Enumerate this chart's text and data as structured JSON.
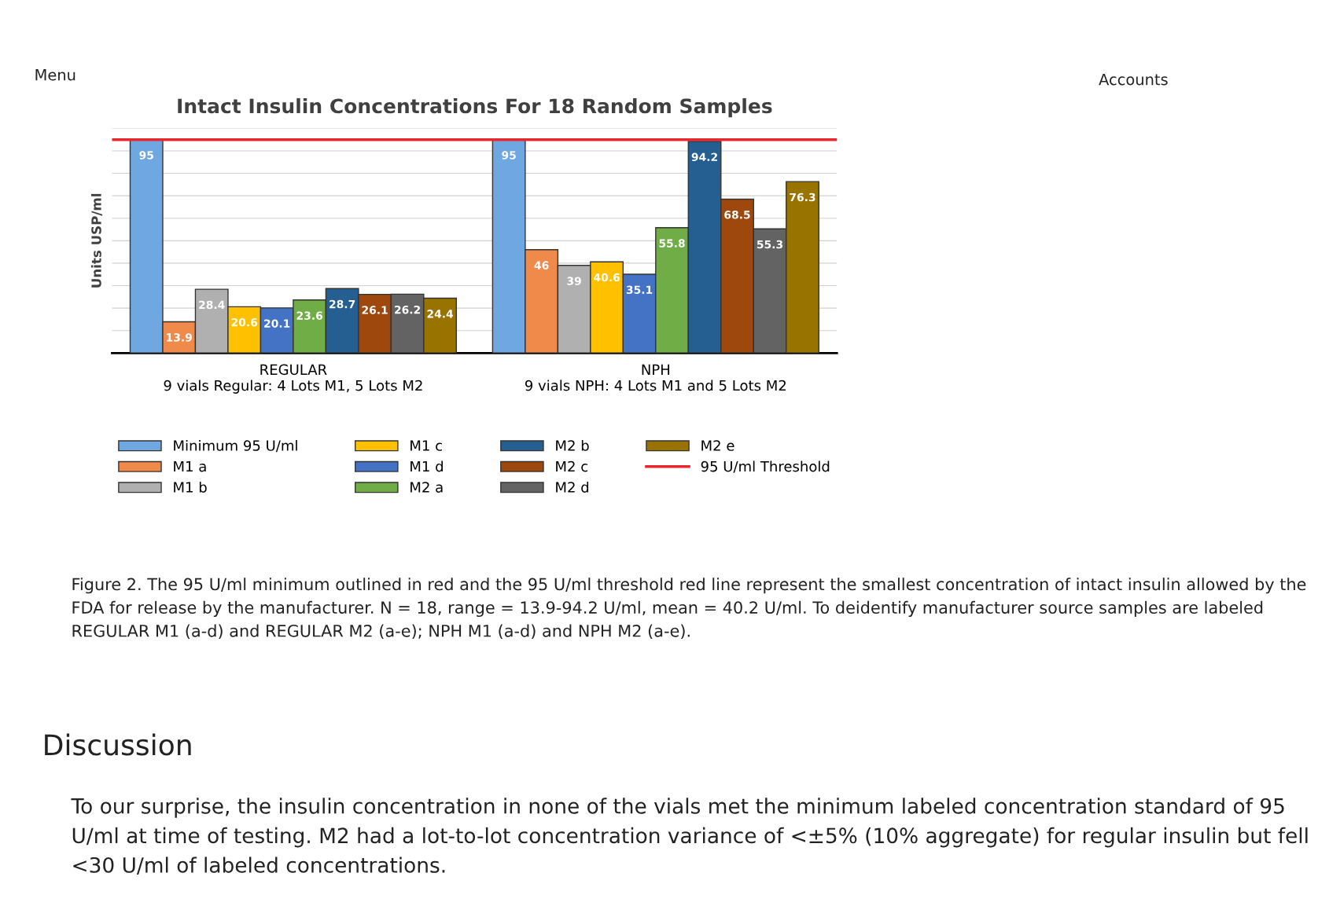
{
  "chart_data": {
    "type": "bar",
    "title": "Intact Insulin Concentrations For 18 Random Samples",
    "ylabel": "Units USP/ml",
    "categories": [
      "REGULAR\n9 vials Regular: 4 Lots M1, 5 Lots M2",
      "NPH\n9 vials NPH: 4 Lots M1 and 5 Lots M2"
    ],
    "series": [
      {
        "name": "Minimum 95 U/ml",
        "color": "#6fa8e0",
        "values": [
          95,
          95
        ]
      },
      {
        "name": "M1 a",
        "color": "#f08a4b",
        "values": [
          13.9,
          46
        ]
      },
      {
        "name": "M1 b",
        "color": "#b0b0b0",
        "values": [
          28.4,
          39
        ]
      },
      {
        "name": "M1 c",
        "color": "#ffc000",
        "values": [
          20.6,
          40.6
        ]
      },
      {
        "name": "M1 d",
        "color": "#4472c4",
        "values": [
          20.1,
          35.1
        ]
      },
      {
        "name": "M2 a",
        "color": "#70ad47",
        "values": [
          23.6,
          55.8
        ]
      },
      {
        "name": "M2 b",
        "color": "#255e91",
        "values": [
          28.7,
          94.2
        ]
      },
      {
        "name": "M2 c",
        "color": "#9e480e",
        "values": [
          26.1,
          68.5
        ]
      },
      {
        "name": "M2 d",
        "color": "#636363",
        "values": [
          26.2,
          55.3
        ]
      },
      {
        "name": "M2 e",
        "color": "#997300",
        "values": [
          24.4,
          76.3
        ]
      }
    ],
    "ylim": [
      0,
      100
    ],
    "yticks": [
      {
        "value": 0,
        "label": null
      },
      {
        "value": 10,
        "label": null
      },
      {
        "value": 20,
        "label": null
      },
      {
        "value": 30,
        "label": null
      },
      {
        "value": 40,
        "label": null
      },
      {
        "value": 50,
        "label": null
      },
      {
        "value": 60,
        "label": null
      },
      {
        "value": 70,
        "label": null
      },
      {
        "value": 80,
        "label": null
      },
      {
        "value": 90,
        "label": null
      },
      {
        "value": 100,
        "label": null
      }
    ],
    "ref_lines": [
      {
        "axis": "y",
        "value": 95,
        "label": "95 U/ml Threshold",
        "color": "#e8262b"
      }
    ],
    "data_labels": true,
    "grid": "y",
    "legend": "bottom",
    "annotations": [
      "Menu",
      "Accounts",
      "Figure 2. The 95 U/ml minimum outlined in red and the 95 U/ml threshold red line represent the smallest concentration of intact insulin allowed by the FDA for release by the manufacturer. N = 18, range = 13.9-94.2 U/ml, mean = 40.2 U/ml. To deidentify manufacturer source samples are labeled REGULAR M1 (a-d) and REGULAR M2 (a-e); NPH M1 (a-d) and NPH M2 (a-e).",
      "Discussion",
      "To our surprise, the insulin concentration in none of the vials met the minimum labeled concentration standard of 95 U/ml at time of testing. M2 had a lot-to-lot concentration variance of <±5% (10% aggregate) for regular insulin but fell <30 U/ml of labeled concentrations."
    ]
  }
}
